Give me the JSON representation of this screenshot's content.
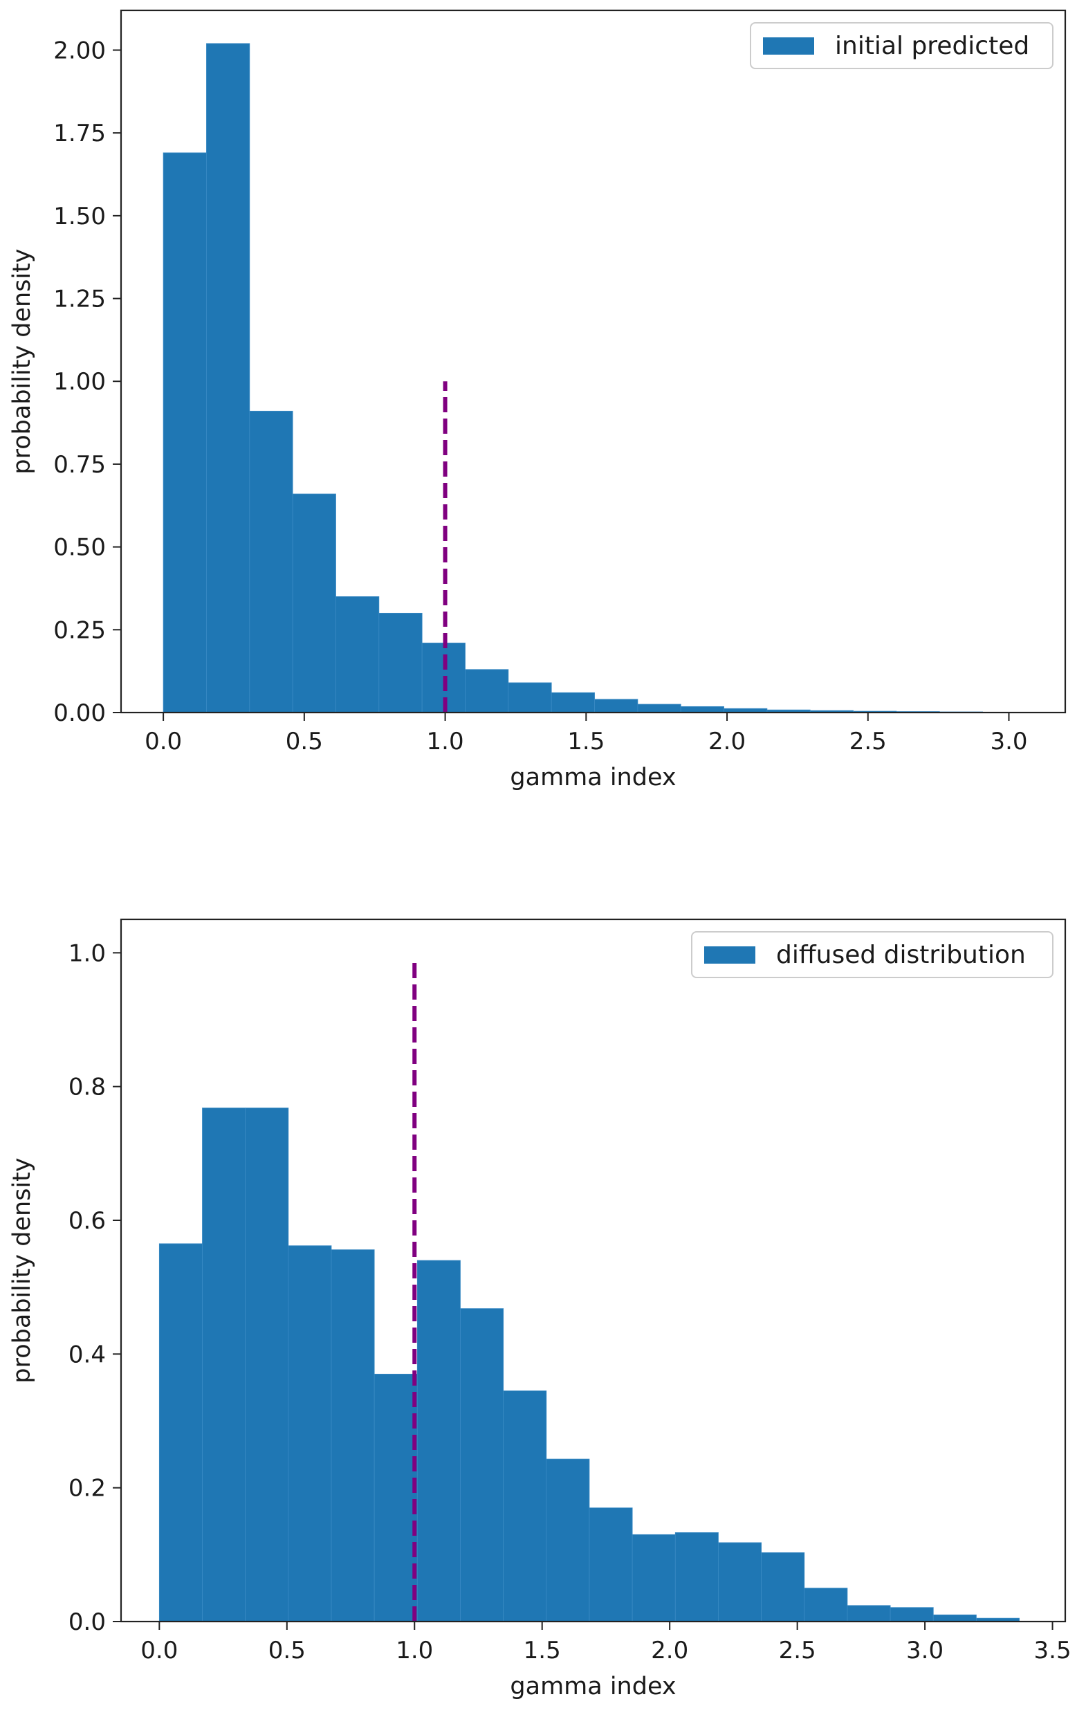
{
  "chart_data": [
    {
      "type": "bar",
      "title": "",
      "xlabel": "gamma index",
      "ylabel": "probability density",
      "xlim": [
        -0.15,
        3.2
      ],
      "ylim": [
        0,
        2.12
      ],
      "xticks": [
        "0.0",
        "0.5",
        "1.0",
        "1.5",
        "2.0",
        "2.5",
        "3.0"
      ],
      "xtick_values": [
        0,
        0.5,
        1.0,
        1.5,
        2.0,
        2.5,
        3.0
      ],
      "yticks": [
        "0.00",
        "0.25",
        "0.50",
        "0.75",
        "1.00",
        "1.25",
        "1.50",
        "1.75",
        "2.00"
      ],
      "ytick_values": [
        0,
        0.25,
        0.5,
        0.75,
        1.0,
        1.25,
        1.5,
        1.75,
        2.0
      ],
      "bin_start": 0.0,
      "bin_width": 0.153,
      "series": [
        {
          "name": "initial predicted",
          "color": "#1f77b4",
          "values": [
            1.69,
            2.02,
            0.91,
            0.66,
            0.35,
            0.3,
            0.21,
            0.13,
            0.09,
            0.06,
            0.04,
            0.025,
            0.018,
            0.012,
            0.008,
            0.006,
            0.004,
            0.003,
            0.002,
            0.001
          ]
        }
      ],
      "reference_line": {
        "x": 1.0,
        "y_min": 0,
        "y_max": 1.0,
        "color": "#800080",
        "style": "dashed"
      },
      "legend_position": "top-right"
    },
    {
      "type": "bar",
      "title": "",
      "xlabel": "gamma index",
      "ylabel": "probability density",
      "xlim": [
        -0.15,
        3.55
      ],
      "ylim": [
        0,
        1.05
      ],
      "xticks": [
        "0.0",
        "0.5",
        "1.0",
        "1.5",
        "2.0",
        "2.5",
        "3.0",
        "3.5"
      ],
      "xtick_values": [
        0,
        0.5,
        1.0,
        1.5,
        2.0,
        2.5,
        3.0,
        3.5
      ],
      "yticks": [
        "0.0",
        "0.2",
        "0.4",
        "0.6",
        "0.8",
        "1.0"
      ],
      "ytick_values": [
        0,
        0.2,
        0.4,
        0.6,
        0.8,
        1.0
      ],
      "bin_start": 0.0,
      "bin_width": 0.1685,
      "series": [
        {
          "name": "diffused distribution",
          "color": "#1f77b4",
          "values": [
            0.565,
            0.768,
            0.768,
            0.562,
            0.556,
            0.37,
            0.54,
            0.468,
            0.345,
            0.243,
            0.17,
            0.13,
            0.133,
            0.118,
            0.103,
            0.05,
            0.024,
            0.021,
            0.01,
            0.005
          ]
        }
      ],
      "reference_line": {
        "x": 1.0,
        "y_min": 0,
        "y_max": 0.99,
        "color": "#800080",
        "style": "dashed"
      },
      "legend_position": "top-right"
    }
  ]
}
